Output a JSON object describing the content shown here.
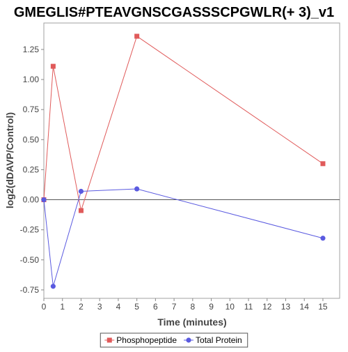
{
  "chart_data": {
    "type": "line",
    "title": "GMEGLIS#PTEAVGNSCGASSSCPGWLR(+ 3)_v1",
    "xlabel": "Time (minutes)",
    "ylabel": "log2(dDAVP/Control)",
    "xlim": [
      0,
      15.9
    ],
    "ylim": [
      -0.82,
      1.47
    ],
    "xticks": [
      0,
      1,
      2,
      3,
      4,
      5,
      6,
      7,
      8,
      9,
      10,
      11,
      12,
      13,
      14,
      15
    ],
    "yticks": [
      -0.75,
      -0.5,
      -0.25,
      0.0,
      0.25,
      0.5,
      0.75,
      1.0,
      1.25
    ],
    "ytick_labels": [
      "-0.75",
      "-0.50",
      "-0.25",
      "0.00",
      "0.25",
      "0.50",
      "0.75",
      "1.00",
      "1.25"
    ],
    "zero_line": true,
    "grid": false,
    "legend_position": "bottom",
    "series": [
      {
        "name": "Phosphopeptide",
        "color": "#e05a5a",
        "marker": "square",
        "x": [
          0,
          0.5,
          2,
          5,
          15
        ],
        "y": [
          0.0,
          1.11,
          -0.09,
          1.36,
          0.3
        ]
      },
      {
        "name": "Total Protein",
        "color": "#5a5ae0",
        "marker": "circle",
        "x": [
          0,
          0.5,
          2,
          5,
          15
        ],
        "y": [
          0.0,
          -0.72,
          0.07,
          0.09,
          -0.32
        ]
      }
    ]
  }
}
